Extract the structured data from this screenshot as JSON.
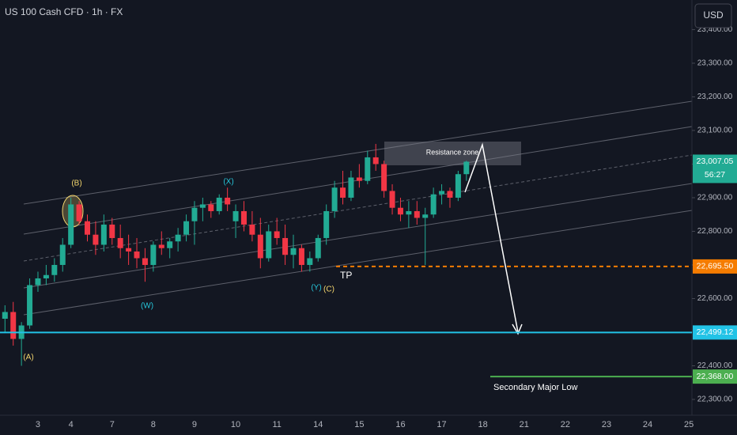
{
  "chart_data": {
    "type": "candlestick",
    "title": "US 100 Cash CFD · 1h · FX",
    "currency": "USD",
    "up_color": "#22ab94",
    "down_color": "#f23645",
    "categories": [
      null,
      null,
      null,
      null,
      "3",
      null,
      null,
      null,
      "4",
      null,
      null,
      null,
      null,
      "7",
      null,
      null,
      null,
      null,
      "8",
      null,
      null,
      null,
      null,
      "9",
      null,
      null,
      null,
      null,
      "10",
      null,
      null,
      null,
      null,
      "11",
      null,
      null,
      null,
      null,
      "14",
      null,
      null,
      null,
      null,
      "15",
      null,
      null,
      null,
      null,
      "16",
      null,
      null,
      null,
      null,
      "17",
      null,
      null,
      null,
      null,
      "18",
      null,
      null,
      null,
      null,
      "21",
      null,
      null,
      null,
      null,
      "22",
      null,
      null,
      null,
      null,
      "23",
      null,
      null,
      null,
      null,
      "24",
      null,
      null,
      null,
      null,
      "25"
    ],
    "open": [
      22540,
      22560,
      22480,
      22520,
      22640,
      22660,
      22670,
      22700,
      22760,
      22880,
      22830,
      22790,
      22760,
      22820,
      22780,
      22750,
      22740,
      22720,
      22700,
      22760,
      22750,
      22770,
      22790,
      22830,
      22870,
      22880,
      22860,
      22900,
      22830,
      22860,
      22820,
      22790,
      22720,
      22800,
      22780,
      22730,
      22750,
      22700,
      22720,
      22780,
      22860,
      22930,
      22900,
      22960,
      22950,
      23020,
      23000,
      22920,
      22870,
      22850,
      22860,
      22840,
      22850,
      22910,
      22920,
      22900,
      22970,
      null,
      null,
      null,
      null,
      null,
      null,
      null,
      null,
      null,
      null,
      null,
      null,
      null,
      null,
      null,
      null,
      null,
      null,
      null,
      null,
      null,
      null,
      null,
      null,
      null,
      null,
      null
    ],
    "high": [
      22580,
      22590,
      22530,
      22660,
      22680,
      22700,
      22720,
      22780,
      22900,
      22890,
      22850,
      22830,
      22850,
      22840,
      22820,
      22790,
      22780,
      22750,
      22770,
      22800,
      22780,
      22810,
      22850,
      22890,
      22900,
      22890,
      22910,
      22930,
      22880,
      22890,
      22860,
      22840,
      22820,
      22840,
      22820,
      22790,
      22760,
      22740,
      22790,
      22880,
      22950,
      22980,
      22980,
      23000,
      23040,
      23060,
      23010,
      22940,
      22900,
      22890,
      22890,
      22870,
      22930,
      22940,
      22930,
      22980,
      23010,
      null,
      null,
      null,
      null,
      null,
      null,
      null,
      null,
      null,
      null,
      null,
      null,
      null,
      null,
      null,
      null,
      null,
      null,
      null,
      null,
      null,
      null,
      null,
      null,
      null,
      null,
      null
    ],
    "low": [
      22500,
      22460,
      22400,
      22510,
      22620,
      22640,
      22650,
      22680,
      22750,
      22820,
      22770,
      22730,
      22740,
      22760,
      22720,
      22700,
      22690,
      22650,
      22680,
      22730,
      22720,
      22740,
      22770,
      22760,
      22830,
      22840,
      22850,
      22860,
      22780,
      22800,
      22770,
      22690,
      22710,
      22760,
      22700,
      22690,
      22680,
      22680,
      22710,
      22760,
      22840,
      22880,
      22890,
      22930,
      22940,
      22980,
      22900,
      22850,
      22830,
      22810,
      22820,
      22700,
      22840,
      22880,
      22870,
      22890,
      22950,
      null,
      null,
      null,
      null,
      null,
      null,
      null,
      null,
      null,
      null,
      null,
      null,
      null,
      null,
      null,
      null,
      null,
      null,
      null,
      null,
      null,
      null,
      null,
      null,
      null,
      null,
      null
    ],
    "close": [
      22560,
      22480,
      22520,
      22640,
      22660,
      22670,
      22700,
      22760,
      22880,
      22830,
      22790,
      22760,
      22820,
      22780,
      22750,
      22740,
      22720,
      22700,
      22760,
      22750,
      22770,
      22790,
      22830,
      22870,
      22880,
      22860,
      22900,
      22880,
      22860,
      22820,
      22790,
      22720,
      22800,
      22780,
      22730,
      22750,
      22700,
      22720,
      22780,
      22860,
      22930,
      22900,
      22960,
      22950,
      23020,
      23000,
      22920,
      22870,
      22850,
      22860,
      22840,
      22850,
      22910,
      22920,
      22900,
      22970,
      23007.05,
      null,
      null,
      null,
      null,
      null,
      null,
      null,
      null,
      null,
      null,
      null,
      null,
      null,
      null,
      null,
      null,
      null,
      null,
      null,
      null,
      null,
      null,
      null,
      null,
      null,
      null,
      null
    ],
    "ylim": [
      22253,
      23488
    ],
    "yticks": [
      {
        "value": 23400,
        "label": "23,400.00"
      },
      {
        "value": 23300,
        "label": "23,300.00"
      },
      {
        "value": 23200,
        "label": "23,200.00"
      },
      {
        "value": 23100,
        "label": "23,100.00"
      },
      {
        "value": 23000,
        "label": "23,000.00"
      },
      {
        "value": 22900,
        "label": "22,900.00"
      },
      {
        "value": 22800,
        "label": "22,800.00"
      },
      {
        "value": 22700,
        "label": "22,700.00"
      },
      {
        "value": 22600,
        "label": "22,600.00"
      },
      {
        "value": 22500,
        "label": "22,500.00"
      },
      {
        "value": 22400,
        "label": "22,400.00"
      },
      {
        "value": 22300,
        "label": "22,300.00"
      }
    ],
    "levels": [
      {
        "value": 22695.5,
        "label": "22,695.50",
        "color": "#f57c00"
      },
      {
        "value": 22499.12,
        "label": "22,499.12",
        "color": "#22c3e6"
      },
      {
        "value": 22368,
        "label": "22,368.00",
        "color": "#4caf50"
      }
    ],
    "last_price": {
      "value": 23007.05,
      "label": "23,007.05",
      "countdown": "56:27",
      "color": "#22ab94"
    },
    "annotations": [
      {
        "text": "(A)",
        "color": "#f5d76e"
      },
      {
        "text": "(B)",
        "color": "#f5d76e"
      },
      {
        "text": "(W)",
        "color": "#26c6da"
      },
      {
        "text": "(X)",
        "color": "#26c6da"
      },
      {
        "text": "(Y)",
        "color": "#26c6da"
      },
      {
        "text": "(C)",
        "color": "#f5d76e"
      },
      {
        "text": "TP",
        "color": "#ffffff"
      },
      {
        "text": "Resistance zone",
        "color": "#ffffff"
      },
      {
        "text": "Secondary Major Low",
        "color": "#ffffff"
      }
    ]
  }
}
